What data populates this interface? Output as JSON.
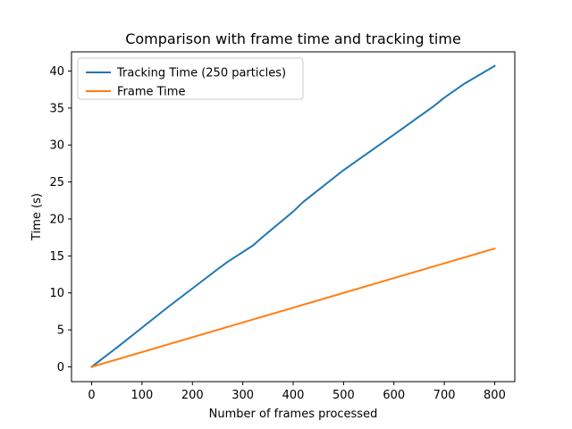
{
  "chart_data": {
    "type": "line",
    "title": "Comparison with frame time and tracking time",
    "xlabel": "Number of frames processed",
    "ylabel": "Time (s)",
    "xlim": [
      -40,
      840
    ],
    "ylim": [
      -2,
      42.6
    ],
    "xticks": [
      0,
      100,
      200,
      300,
      400,
      500,
      600,
      700,
      800
    ],
    "yticks": [
      0,
      5,
      10,
      15,
      20,
      25,
      30,
      35,
      40
    ],
    "grid": false,
    "legend_position": "top-left",
    "series": [
      {
        "name": "Tracking Time (250 particles)",
        "color": "#1f77b4",
        "x": [
          0,
          50,
          100,
          150,
          200,
          250,
          270,
          320,
          340,
          400,
          420,
          500,
          600,
          680,
          700,
          740,
          800
        ],
        "y": [
          0,
          2.6,
          5.3,
          8.0,
          10.6,
          13.2,
          14.2,
          16.4,
          17.6,
          21.0,
          22.3,
          26.6,
          31.4,
          35.3,
          36.4,
          38.3,
          40.7
        ]
      },
      {
        "name": "Frame Time",
        "color": "#ff7f0e",
        "x": [
          0,
          800
        ],
        "y": [
          0,
          16.0
        ]
      }
    ]
  }
}
